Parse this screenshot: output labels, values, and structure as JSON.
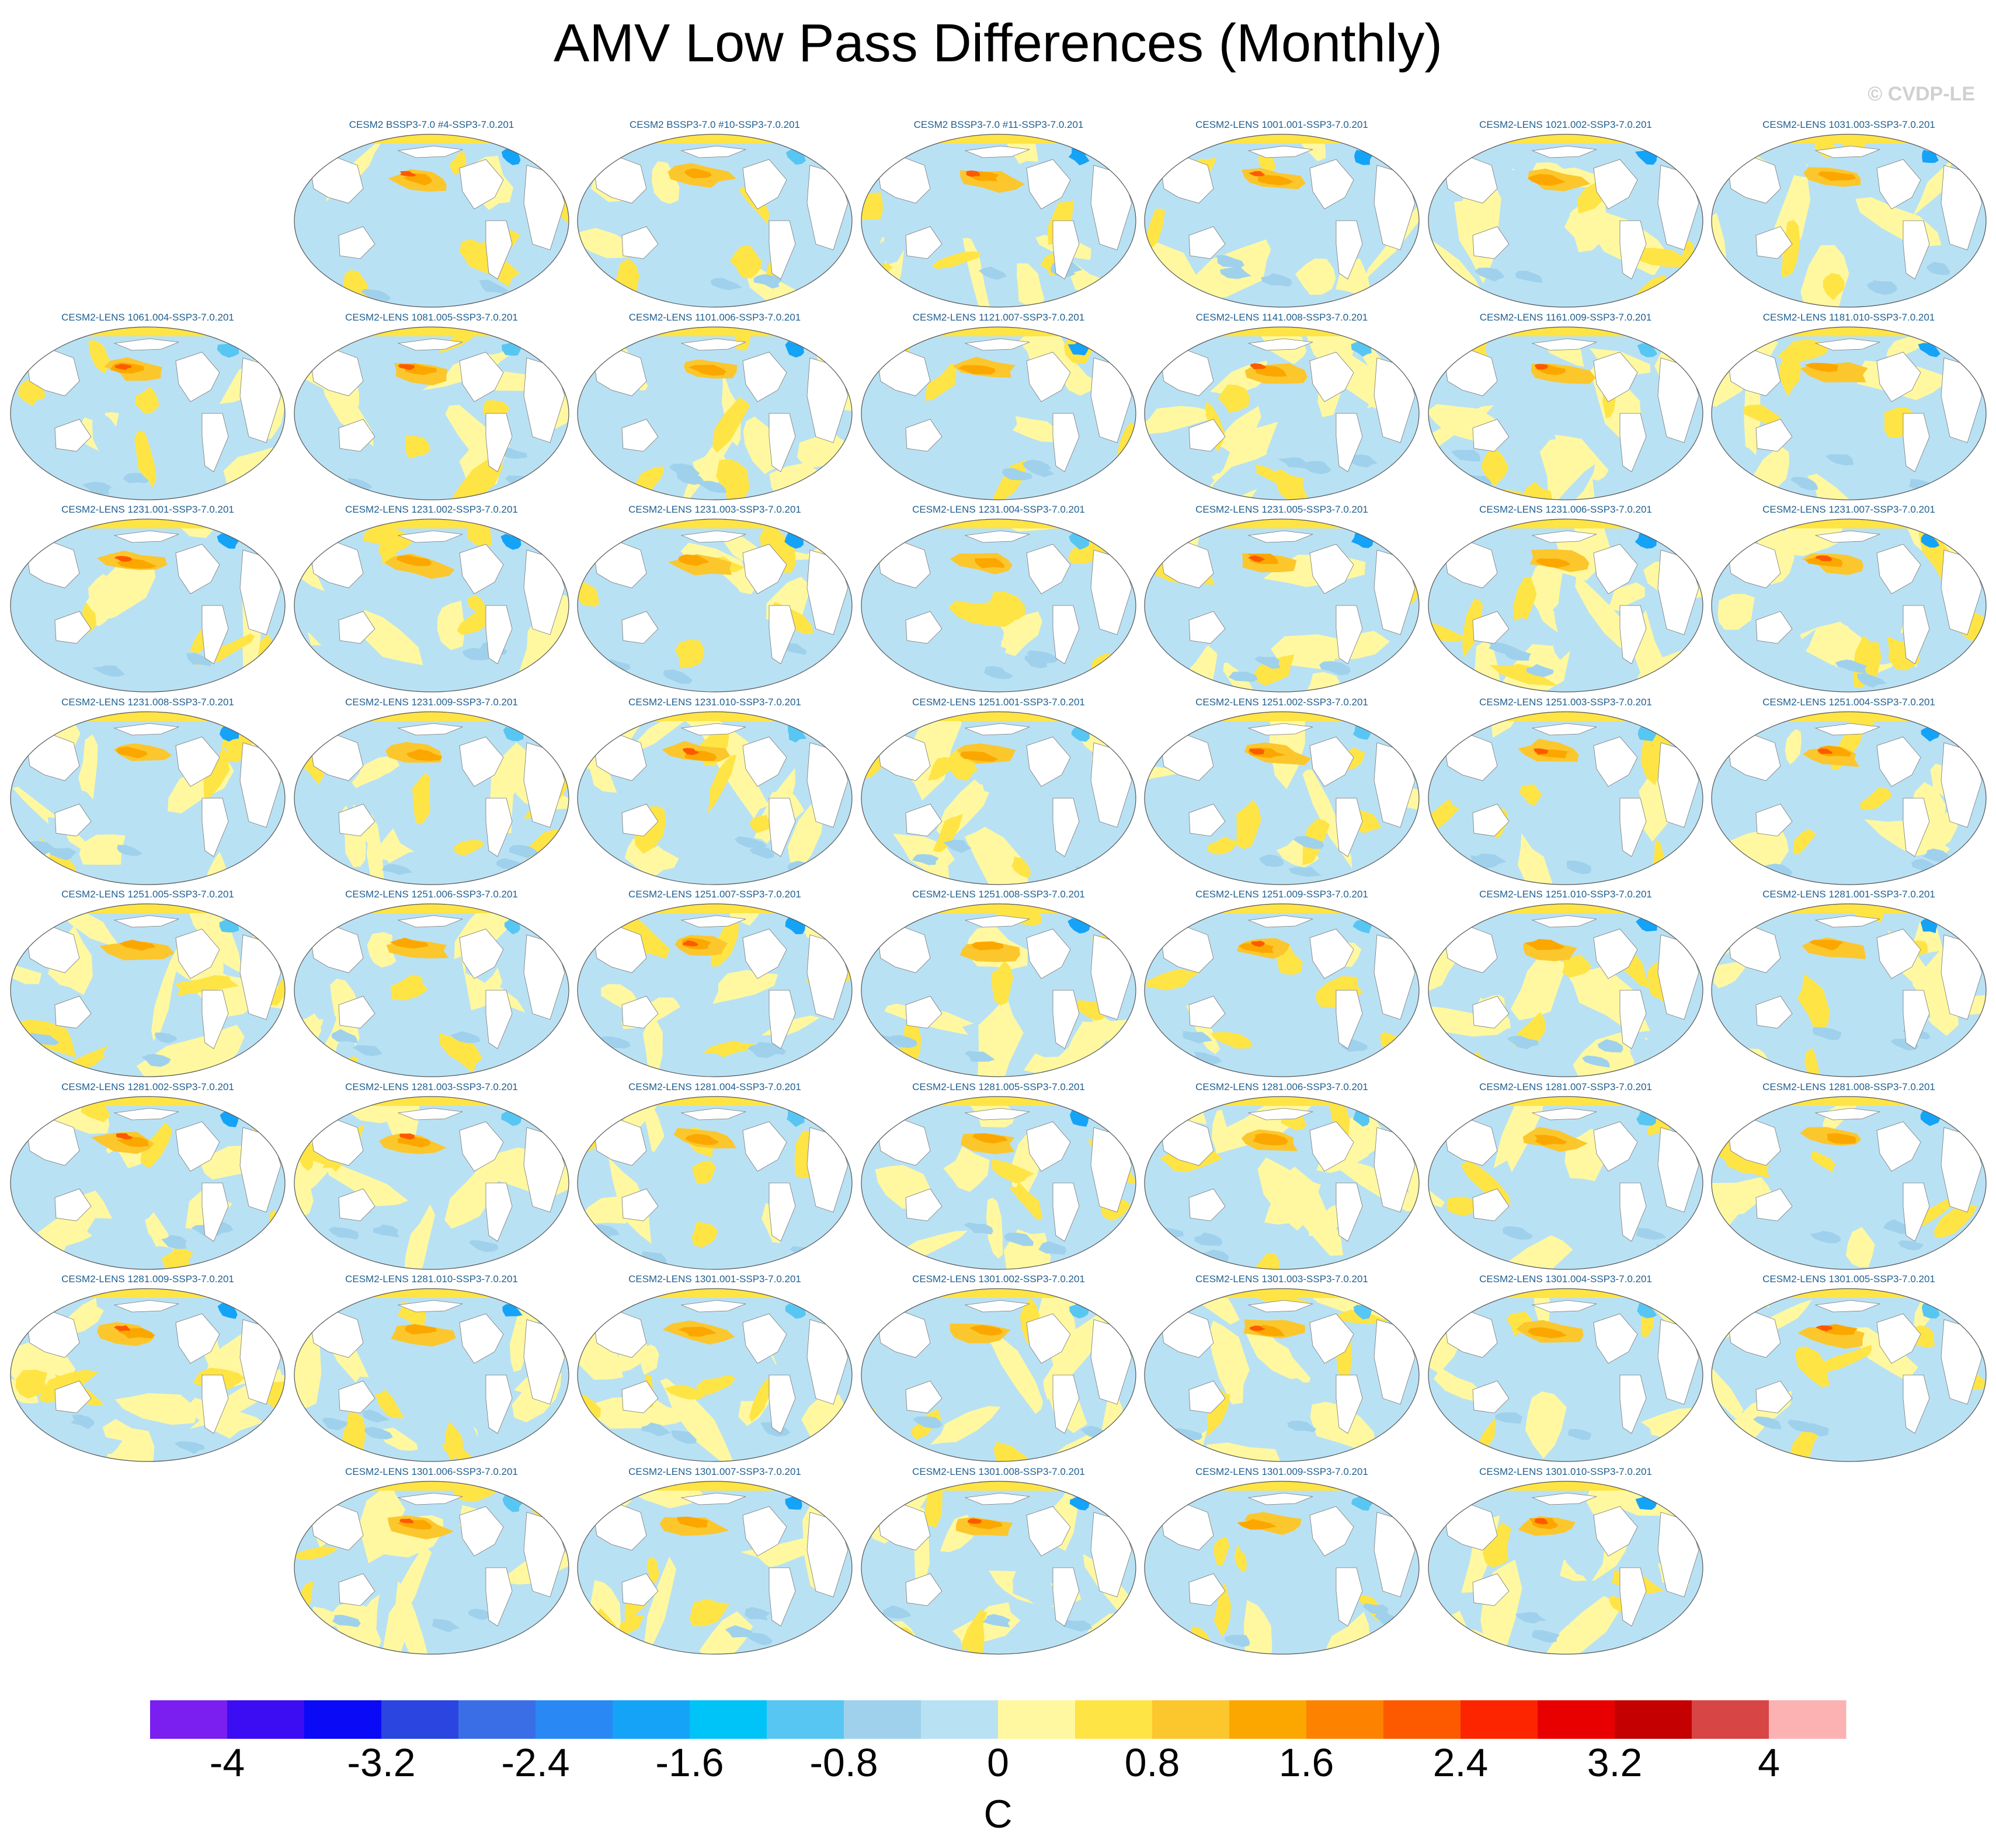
{
  "title": "AMV Low Pass Differences (Monthly)",
  "watermark": "© CVDP-LE",
  "chart_data": {
    "type": "heatmap",
    "projection": "global map panels",
    "title": "AMV Low Pass Differences (Monthly)",
    "panel_titles": [
      "CESM2 BSSP3-7.0 #4-SSP3-7.0.201",
      "CESM2 BSSP3-7.0 #10-SSP3-7.0.201",
      "CESM2 BSSP3-7.0 #11-SSP3-7.0.201",
      "CESM2-LENS 1001.001-SSP3-7.0.201",
      "CESM2-LENS 1021.002-SSP3-7.0.201",
      "CESM2-LENS 1031.003-SSP3-7.0.201",
      "CESM2-LENS 1061.004-SSP3-7.0.201",
      "CESM2-LENS 1081.005-SSP3-7.0.201",
      "CESM2-LENS 1101.006-SSP3-7.0.201",
      "CESM2-LENS 1121.007-SSP3-7.0.201",
      "CESM2-LENS 1141.008-SSP3-7.0.201",
      "CESM2-LENS 1161.009-SSP3-7.0.201",
      "CESM2-LENS 1181.010-SSP3-7.0.201",
      "CESM2-LENS 1231.001-SSP3-7.0.201",
      "CESM2-LENS 1231.002-SSP3-7.0.201",
      "CESM2-LENS 1231.003-SSP3-7.0.201",
      "CESM2-LENS 1231.004-SSP3-7.0.201",
      "CESM2-LENS 1231.005-SSP3-7.0.201",
      "CESM2-LENS 1231.006-SSP3-7.0.201",
      "CESM2-LENS 1231.007-SSP3-7.0.201",
      "CESM2-LENS 1231.008-SSP3-7.0.201",
      "CESM2-LENS 1231.009-SSP3-7.0.201",
      "CESM2-LENS 1231.010-SSP3-7.0.201",
      "CESM2-LENS 1251.001-SSP3-7.0.201",
      "CESM2-LENS 1251.002-SSP3-7.0.201",
      "CESM2-LENS 1251.003-SSP3-7.0.201",
      "CESM2-LENS 1251.004-SSP3-7.0.201",
      "CESM2-LENS 1251.005-SSP3-7.0.201",
      "CESM2-LENS 1251.006-SSP3-7.0.201",
      "CESM2-LENS 1251.007-SSP3-7.0.201",
      "CESM2-LENS 1251.008-SSP3-7.0.201",
      "CESM2-LENS 1251.009-SSP3-7.0.201",
      "CESM2-LENS 1251.010-SSP3-7.0.201",
      "CESM2-LENS 1281.001-SSP3-7.0.201",
      "CESM2-LENS 1281.002-SSP3-7.0.201",
      "CESM2-LENS 1281.003-SSP3-7.0.201",
      "CESM2-LENS 1281.004-SSP3-7.0.201",
      "CESM2-LENS 1281.005-SSP3-7.0.201",
      "CESM2-LENS 1281.006-SSP3-7.0.201",
      "CESM2-LENS 1281.007-SSP3-7.0.201",
      "CESM2-LENS 1281.008-SSP3-7.0.201",
      "CESM2-LENS 1281.009-SSP3-7.0.201",
      "CESM2-LENS 1281.010-SSP3-7.0.201",
      "CESM2-LENS 1301.001-SSP3-7.0.201",
      "CESM2-LENS 1301.002-SSP3-7.0.201",
      "CESM2-LENS 1301.003-SSP3-7.0.201",
      "CESM2-LENS 1301.004-SSP3-7.0.201",
      "CESM2-LENS 1301.005-SSP3-7.0.201",
      "CESM2-LENS 1301.006-SSP3-7.0.201",
      "CESM2-LENS 1301.007-SSP3-7.0.201",
      "CESM2-LENS 1301.008-SSP3-7.0.201",
      "CESM2-LENS 1301.009-SSP3-7.0.201",
      "CESM2-LENS 1301.010-SSP3-7.0.201"
    ],
    "colorbar": {
      "unit": "C",
      "range": [
        -4.4,
        4.4
      ],
      "step": 0.4,
      "tick_labels": [
        "-4",
        "-3.2",
        "-2.4",
        "-1.6",
        "-0.8",
        "0",
        "0.8",
        "1.6",
        "2.4",
        "3.2",
        "4"
      ],
      "tick_values": [
        -4,
        -3.2,
        -2.4,
        -1.6,
        -0.8,
        0,
        0.8,
        1.6,
        2.4,
        3.2,
        4
      ],
      "colors": [
        "#7a1ff0",
        "#3c0cf2",
        "#0a0af7",
        "#2b45e0",
        "#3a6ee6",
        "#2a88f5",
        "#14a3f7",
        "#00c3f7",
        "#58c6f2",
        "#9fd1ec",
        "#b9e1f4",
        "#fff8a0",
        "#ffe446",
        "#fbc72d",
        "#fca700",
        "#fd8200",
        "#fd5a00",
        "#fd2400",
        "#e80000",
        "#c40000",
        "#d84545",
        "#fcb2b2"
      ]
    }
  }
}
